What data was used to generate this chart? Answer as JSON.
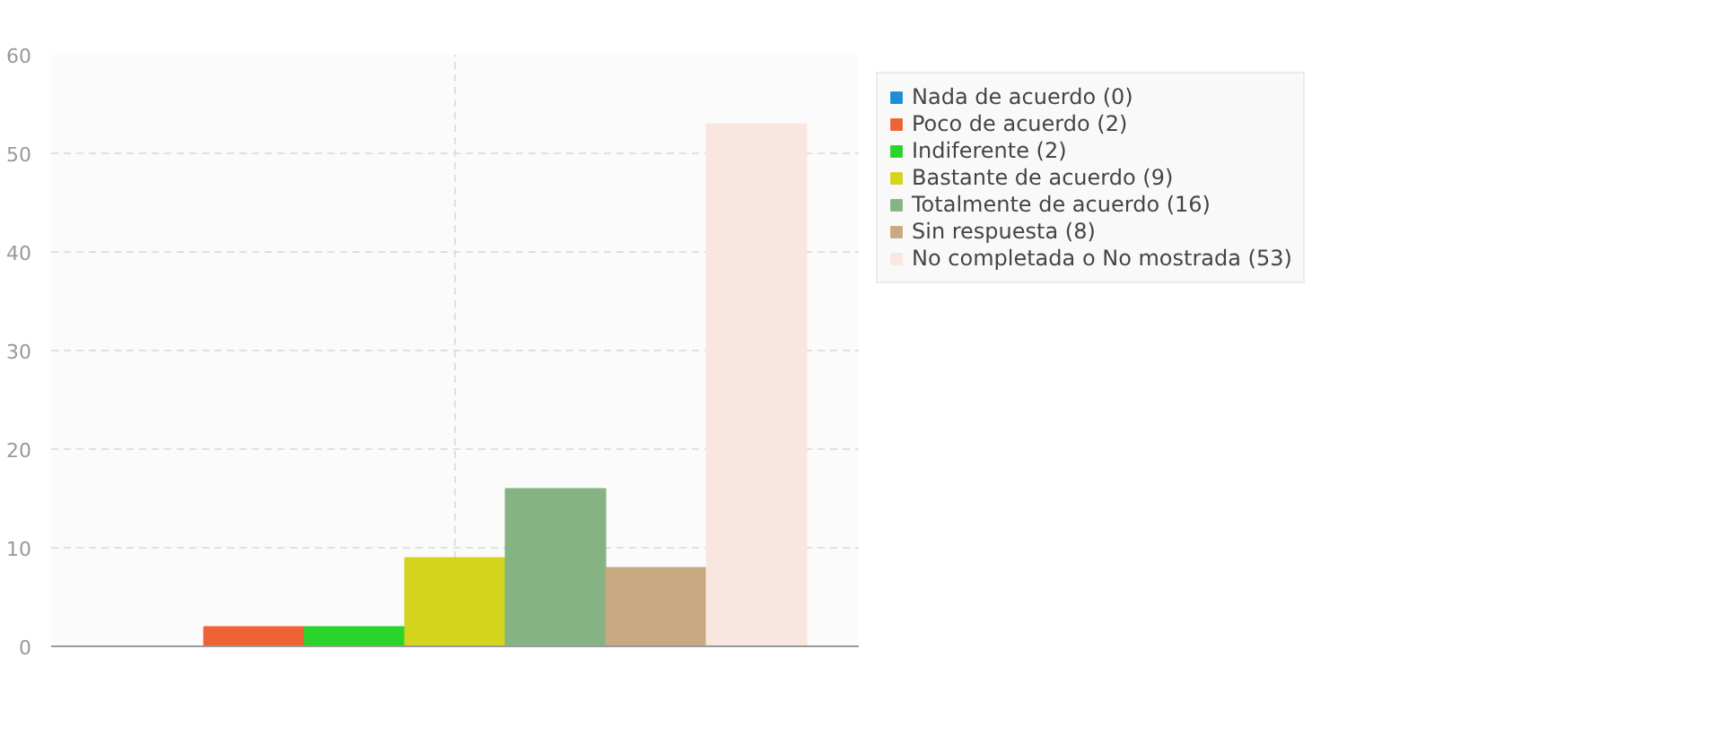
{
  "chart_data": {
    "type": "bar",
    "categories": [
      null
    ],
    "series": [
      {
        "name": "Nada de acuerdo (0)",
        "color": "#1f8dd6",
        "values": [
          0
        ]
      },
      {
        "name": "Poco de acuerdo (2)",
        "color": "#ee6336",
        "values": [
          2
        ]
      },
      {
        "name": "Indiferente (2)",
        "color": "#2ad42a",
        "values": [
          2
        ]
      },
      {
        "name": "Bastante de acuerdo (9)",
        "color": "#d4d41f",
        "values": [
          9
        ]
      },
      {
        "name": "Totalmente de acuerdo (16)",
        "color": "#86b383",
        "values": [
          16
        ]
      },
      {
        "name": "Sin respuesta (8)",
        "color": "#c8aa82",
        "values": [
          8
        ]
      },
      {
        "name": "No completada o No mostrada (53)",
        "color": "#fae6e0",
        "values": [
          53
        ]
      }
    ],
    "ylim": [
      0,
      60
    ],
    "yticks": [
      0,
      10,
      20,
      30,
      40,
      50,
      60
    ],
    "grid": true,
    "legend": "right"
  }
}
